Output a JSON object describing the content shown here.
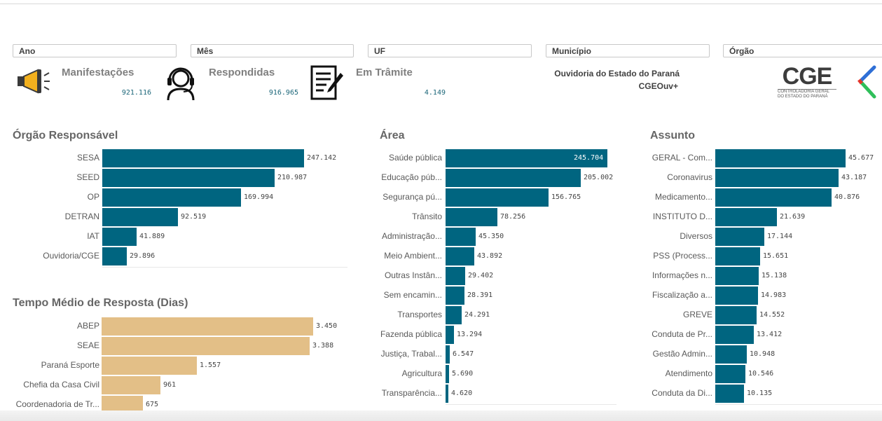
{
  "filters": {
    "ano": "Ano",
    "mes": "Mês",
    "uf": "UF",
    "municipio": "Município",
    "orgao": "Órgão"
  },
  "kpis": {
    "manifestacoes": {
      "title": "Manifestações",
      "value": "921.116"
    },
    "respondidas": {
      "title": "Respondidas",
      "value": "916.965"
    },
    "em_tramite": {
      "title": "Em Trâmite",
      "value": "4.149"
    }
  },
  "org": {
    "name": "Ouvidoria do Estado do Paraná",
    "system": "CGEOuv+"
  },
  "logo": {
    "main": "CGE",
    "line1": "CONTROLADORIA GERAL",
    "line2": "DO ESTADO DO PARANÁ"
  },
  "colors": {
    "bar_blue": "#006580",
    "bar_tan": "#e3bf87"
  },
  "chart_data": [
    {
      "id": "orgao",
      "type": "bar",
      "orientation": "horizontal",
      "title": "Órgão Responsável",
      "categories": [
        "SESA",
        "SEED",
        "OP",
        "DETRAN",
        "IAT",
        "Ouvidoria/CGE"
      ],
      "values": [
        247142,
        210987,
        169994,
        92519,
        41889,
        29896
      ],
      "labels": [
        "247.142",
        "210.987",
        "169.994",
        "92.519",
        "41.889",
        "29.896"
      ],
      "xlim": [
        0,
        247142
      ]
    },
    {
      "id": "tempo",
      "type": "bar",
      "orientation": "horizontal",
      "title": "Tempo Médio de Resposta (Dias)",
      "categories": [
        "ABEP",
        "SEAE",
        "Paraná Esporte",
        "Chefia da Casa Civil",
        "Coordenadoria de Tr..."
      ],
      "values": [
        3450,
        3388,
        1557,
        961,
        675
      ],
      "labels": [
        "3.450",
        "3.388",
        "1.557",
        "961",
        "675"
      ],
      "xlim": [
        0,
        3450
      ]
    },
    {
      "id": "area",
      "type": "bar",
      "orientation": "horizontal",
      "title": "Área",
      "categories": [
        "Saúde pública",
        "Educação púb...",
        "Segurança pú...",
        "Trânsito",
        "Administração...",
        "Meio Ambient...",
        "Outras Instân...",
        "Sem encamin...",
        "Transportes",
        "Fazenda pública",
        "Justiça, Trabal...",
        "Agricultura",
        "Transparência..."
      ],
      "values": [
        245704,
        205002,
        156765,
        78256,
        45350,
        43892,
        29402,
        28391,
        24291,
        13294,
        6547,
        5690,
        4620
      ],
      "labels": [
        "245.704",
        "205.002",
        "156.765",
        "78.256",
        "45.350",
        "43.892",
        "29.402",
        "28.391",
        "24.291",
        "13.294",
        "6.547",
        "5.690",
        "4.620"
      ],
      "xlim": [
        0,
        245704
      ]
    },
    {
      "id": "assunto",
      "type": "bar",
      "orientation": "horizontal",
      "title": "Assunto",
      "categories": [
        "GERAL - Com...",
        "Coronavirus",
        "Medicamento...",
        "INSTITUTO D...",
        "Diversos",
        "PSS (Process...",
        "Informações n...",
        "Fiscalização a...",
        "GREVE",
        "Conduta de Pr...",
        "Gestão Admin...",
        "Atendimento",
        "Conduta da Di..."
      ],
      "values": [
        45677,
        43187,
        40876,
        21639,
        17144,
        15651,
        15138,
        14983,
        14552,
        13412,
        10948,
        10546,
        10135
      ],
      "labels": [
        "45.677",
        "43.187",
        "40.876",
        "21.639",
        "17.144",
        "15.651",
        "15.138",
        "14.983",
        "14.552",
        "13.412",
        "10.948",
        "10.546",
        "10.135"
      ],
      "xlim": [
        0,
        45677
      ]
    }
  ]
}
